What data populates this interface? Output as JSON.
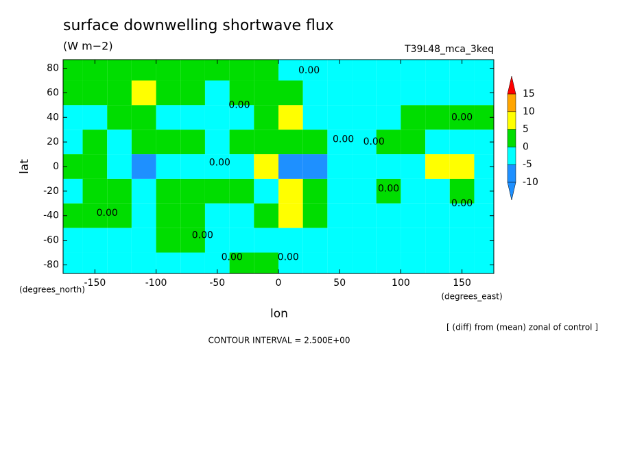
{
  "chart_data": {
    "type": "contour",
    "title": "surface downwelling shortwave flux",
    "units": "(W m−2)",
    "subtitle": "T39L48_mca_3keq",
    "x_label": "lon",
    "y_label": "lat",
    "x_unit_label": "(degrees_east)",
    "y_unit_label": "(degrees_north)",
    "note": "[ (diff) from (mean) zonal of control ]",
    "footer": "CONTOUR INTERVAL = 2.500E+00",
    "xlim": [
      -176,
      176
    ],
    "ylim": [
      -87,
      87
    ],
    "xticks": [
      -150,
      -100,
      -50,
      0,
      50,
      100,
      150
    ],
    "yticks": [
      -80,
      -60,
      -40,
      -20,
      0,
      20,
      40,
      60,
      80
    ],
    "levels": [
      -10,
      -5,
      0,
      5,
      10,
      15
    ],
    "colors": [
      "#1e90ff",
      "#00ffff",
      "#00dd00",
      "#ffff00",
      "#ffa500",
      "#ff0000"
    ],
    "lon": [
      -170,
      -150,
      -130,
      -110,
      -90,
      -70,
      -50,
      -30,
      -10,
      10,
      30,
      50,
      70,
      90,
      110,
      130,
      150,
      170
    ],
    "lat": [
      80,
      60,
      40,
      20,
      0,
      -20,
      -40,
      -60,
      -80
    ],
    "z": [
      [
        2,
        2,
        2,
        2,
        2,
        2,
        2,
        2,
        2,
        -1,
        -1,
        -1,
        -1,
        -1,
        -1,
        -1,
        -1,
        -1
      ],
      [
        2,
        2,
        3,
        6,
        2,
        2,
        -1,
        2,
        2,
        2,
        -1,
        -1,
        -2,
        -1,
        -1,
        -1,
        -1,
        -1
      ],
      [
        -1,
        -3,
        2,
        2,
        -1,
        -1,
        -2,
        -1,
        3,
        6,
        -1,
        -2,
        -1,
        -1,
        2,
        2,
        2,
        2
      ],
      [
        -1,
        2,
        -1,
        2,
        2,
        2,
        -1,
        2,
        2,
        2,
        2,
        -1,
        -2,
        2,
        2,
        -1,
        -1,
        -1
      ],
      [
        2,
        2,
        -3,
        -6,
        -1,
        -1,
        -2,
        -2,
        7,
        -6,
        -6,
        -2,
        -2,
        -1,
        -2,
        6,
        6,
        -1
      ],
      [
        -1,
        2,
        2,
        -1,
        2,
        2,
        2,
        2,
        -1,
        7,
        2,
        -1,
        -1,
        2,
        -1,
        -1,
        2,
        -1
      ],
      [
        2,
        2,
        2,
        -1,
        2,
        2,
        -1,
        -1,
        2,
        6,
        2,
        -1,
        -2,
        -1,
        -1,
        -3,
        -3,
        -1
      ],
      [
        -1,
        -1,
        -1,
        -1,
        2,
        2,
        -1,
        -1,
        -1,
        -1,
        -1,
        -1,
        -1,
        -1,
        -1,
        -1,
        -1,
        -1
      ],
      [
        -1,
        -1,
        -1,
        -1,
        -1,
        -1,
        -1,
        2,
        2,
        -1,
        -1,
        -1,
        -1,
        -1,
        -1,
        -1,
        -1,
        -1
      ]
    ],
    "contour_labels": [
      {
        "text": "0.00",
        "lon": 25,
        "lat": 78
      },
      {
        "text": "0.00",
        "lon": -32,
        "lat": 50
      },
      {
        "text": "0.00",
        "lon": 150,
        "lat": 40
      },
      {
        "text": "0.00",
        "lon": 53,
        "lat": 22
      },
      {
        "text": "0.00",
        "lon": 78,
        "lat": 20
      },
      {
        "text": "0.00",
        "lon": -48,
        "lat": 3
      },
      {
        "text": "0.00",
        "lon": 90,
        "lat": -18
      },
      {
        "text": "0.00",
        "lon": 150,
        "lat": -30
      },
      {
        "text": "0.00",
        "lon": -140,
        "lat": -38
      },
      {
        "text": "0.00",
        "lon": -62,
        "lat": -56
      },
      {
        "text": "0.00",
        "lon": -38,
        "lat": -74
      },
      {
        "text": "0.00",
        "lon": 8,
        "lat": -74
      }
    ]
  }
}
